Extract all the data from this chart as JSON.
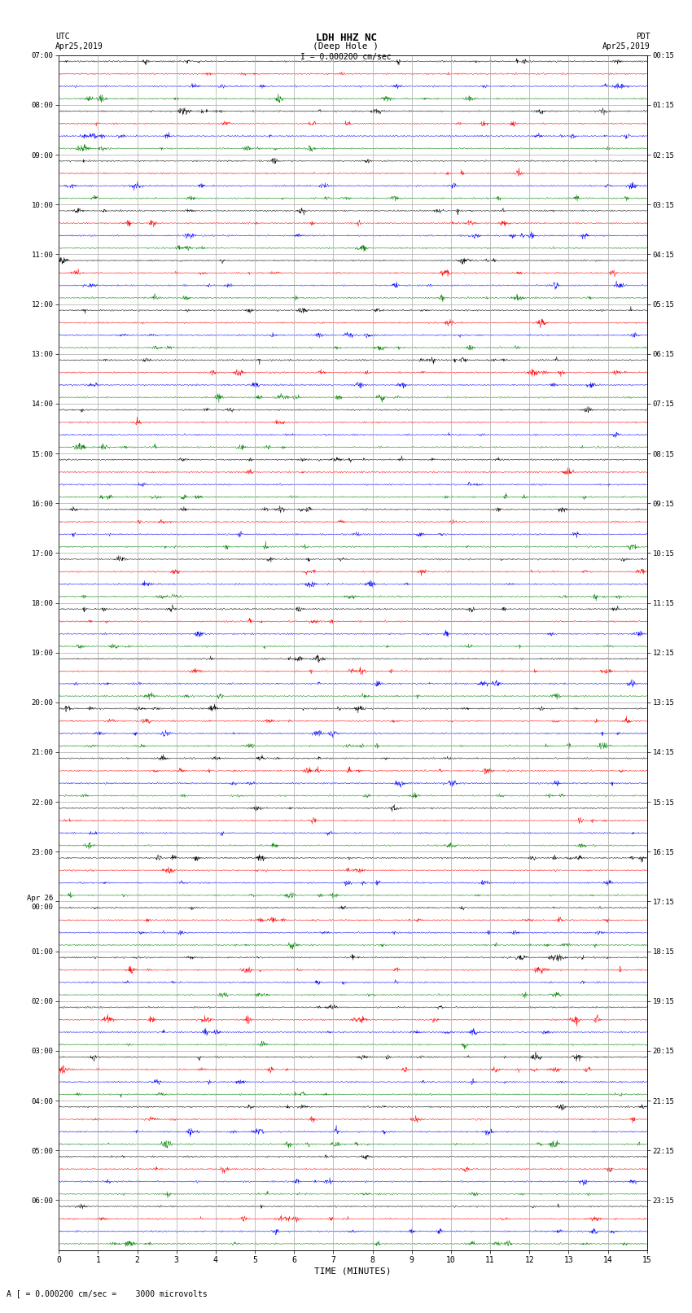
{
  "title_line1": "LDH HHZ NC",
  "title_line2": "(Deep Hole )",
  "scale_label": "I = 0.000200 cm/sec",
  "bottom_label": "A [ = 0.000200 cm/sec =    3000 microvolts",
  "xlabel": "TIME (MINUTES)",
  "bg_color": "#ffffff",
  "trace_colors": [
    "black",
    "red",
    "blue",
    "green"
  ],
  "n_groups": 24,
  "traces_per_group": 4,
  "left_labels": [
    "07:00",
    "08:00",
    "09:00",
    "10:00",
    "11:00",
    "12:00",
    "13:00",
    "14:00",
    "15:00",
    "16:00",
    "17:00",
    "18:00",
    "19:00",
    "20:00",
    "21:00",
    "22:00",
    "23:00",
    "Apr 26\n00:00",
    "01:00",
    "02:00",
    "03:00",
    "04:00",
    "05:00",
    "06:00"
  ],
  "right_labels": [
    "00:15",
    "01:15",
    "02:15",
    "03:15",
    "04:15",
    "05:15",
    "06:15",
    "07:15",
    "08:15",
    "09:15",
    "10:15",
    "11:15",
    "12:15",
    "13:15",
    "14:15",
    "15:15",
    "16:15",
    "17:15",
    "18:15",
    "19:15",
    "20:15",
    "21:15",
    "22:15",
    "23:15"
  ],
  "grid_color": "#aaaaaa",
  "trace_amp": 0.3,
  "trace_spike_amp": 0.55,
  "n_samples": 2000,
  "high_freq_samples": 400,
  "lw": 0.35
}
